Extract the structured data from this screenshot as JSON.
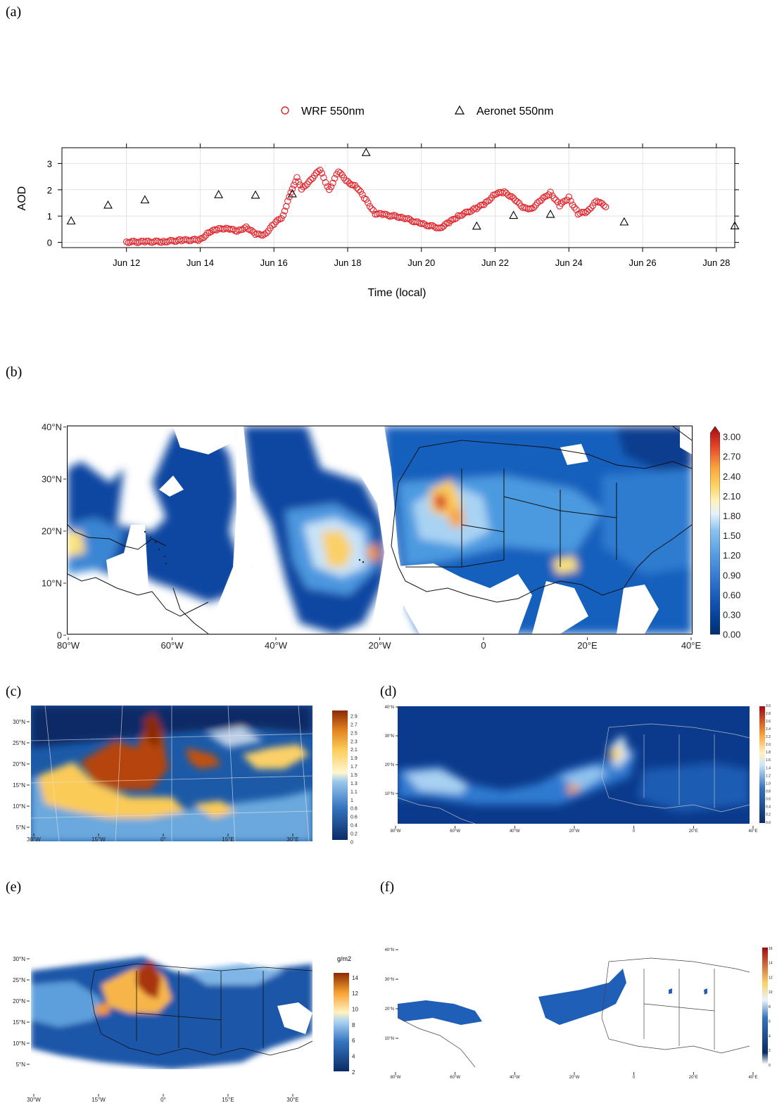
{
  "panels": {
    "a": "(a)",
    "b": "(b)",
    "c": "(c)",
    "d": "(d)",
    "e": "(e)",
    "f": "(f)"
  },
  "chart_data": [
    {
      "panel": "a",
      "type": "scatter",
      "title": "",
      "xlabel": "Time (local)",
      "ylabel": "AOD",
      "xlim": [
        "2015-06-10T06:00",
        "2015-06-28T12:00"
      ],
      "ylim": [
        -0.2,
        3.6
      ],
      "x_ticks": [
        "Jun 12",
        "Jun 14",
        "Jun 16",
        "Jun 18",
        "Jun 20",
        "Jun 22",
        "Jun 24",
        "Jun 26",
        "Jun 28"
      ],
      "x_tick_dates": [
        "2015-06-12",
        "2015-06-14",
        "2015-06-16",
        "2015-06-18",
        "2015-06-20",
        "2015-06-22",
        "2015-06-24",
        "2015-06-26",
        "2015-06-28"
      ],
      "y_ticks": [
        "0",
        "1",
        "2",
        "3"
      ],
      "grid": true,
      "legend": "top-center",
      "series": [
        {
          "name": "WRF 550nm",
          "marker": "circle",
          "color": "#e3242b",
          "points": [
            [
              "2015-06-12T00:00",
              0.02
            ],
            [
              "2015-06-12T12:00",
              0.02
            ],
            [
              "2015-06-13T00:00",
              0.03
            ],
            [
              "2015-06-13T12:00",
              0.08
            ],
            [
              "2015-06-14T00:00",
              0.1
            ],
            [
              "2015-06-14T06:00",
              0.4
            ],
            [
              "2015-06-14T12:00",
              0.5
            ],
            [
              "2015-06-14T18:00",
              0.55
            ],
            [
              "2015-06-15T00:00",
              0.4
            ],
            [
              "2015-06-15T06:00",
              0.6
            ],
            [
              "2015-06-15T12:00",
              0.3
            ],
            [
              "2015-06-15T18:00",
              0.3
            ],
            [
              "2015-06-16T00:00",
              0.7
            ],
            [
              "2015-06-16T06:00",
              1.0
            ],
            [
              "2015-06-16T09:00",
              1.6
            ],
            [
              "2015-06-16T12:00",
              2.0
            ],
            [
              "2015-06-16T15:00",
              2.5
            ],
            [
              "2015-06-16T18:00",
              2.0
            ],
            [
              "2015-06-17T00:00",
              2.4
            ],
            [
              "2015-06-17T06:00",
              2.75
            ],
            [
              "2015-06-17T12:00",
              2.0
            ],
            [
              "2015-06-17T18:00",
              2.7
            ],
            [
              "2015-06-18T00:00",
              2.3
            ],
            [
              "2015-06-18T06:00",
              2.1
            ],
            [
              "2015-06-18T12:00",
              1.6
            ],
            [
              "2015-06-18T18:00",
              1.1
            ],
            [
              "2015-06-19T00:00",
              1.05
            ],
            [
              "2015-06-19T12:00",
              0.95
            ],
            [
              "2015-06-20T00:00",
              0.7
            ],
            [
              "2015-06-20T12:00",
              0.55
            ],
            [
              "2015-06-20T18:00",
              0.75
            ],
            [
              "2015-06-21T00:00",
              1.0
            ],
            [
              "2015-06-21T12:00",
              1.3
            ],
            [
              "2015-06-21T18:00",
              1.5
            ],
            [
              "2015-06-22T00:00",
              1.85
            ],
            [
              "2015-06-22T06:00",
              1.9
            ],
            [
              "2015-06-22T12:00",
              1.7
            ],
            [
              "2015-06-22T18:00",
              1.3
            ],
            [
              "2015-06-23T00:00",
              1.3
            ],
            [
              "2015-06-23T06:00",
              1.6
            ],
            [
              "2015-06-23T12:00",
              1.9
            ],
            [
              "2015-06-23T18:00",
              1.4
            ],
            [
              "2015-06-24T00:00",
              1.7
            ],
            [
              "2015-06-24T06:00",
              1.1
            ],
            [
              "2015-06-24T12:00",
              1.15
            ],
            [
              "2015-06-24T18:00",
              1.6
            ],
            [
              "2015-06-25T00:00",
              1.35
            ]
          ]
        },
        {
          "name": "Aeronet 550nm",
          "marker": "triangle",
          "color": "#000000",
          "points": [
            [
              "2015-06-10T12:00",
              0.82
            ],
            [
              "2015-06-11T12:00",
              1.42
            ],
            [
              "2015-06-12T12:00",
              1.62
            ],
            [
              "2015-06-14T12:00",
              1.82
            ],
            [
              "2015-06-15T12:00",
              1.8
            ],
            [
              "2015-06-16T12:00",
              1.85
            ],
            [
              "2015-06-18T12:00",
              3.42
            ],
            [
              "2015-06-21T12:00",
              0.62
            ],
            [
              "2015-06-22T12:00",
              1.03
            ],
            [
              "2015-06-23T12:00",
              1.07
            ],
            [
              "2015-06-25T12:00",
              0.78
            ],
            [
              "2015-06-28T12:00",
              0.63
            ]
          ]
        }
      ]
    },
    {
      "panel": "b",
      "type": "heatmap",
      "title": "",
      "lat_ticks": [
        "40°N",
        "30°N",
        "20°N",
        "10°N",
        "0"
      ],
      "lon_ticks": [
        "80°W",
        "60°W",
        "40°W",
        "20°W",
        "0",
        "20°E",
        "40°E"
      ],
      "colorbar_ticks": [
        "3.00",
        "2.70",
        "2.40",
        "2.10",
        "1.80",
        "1.50",
        "1.20",
        "0.90",
        "0.60",
        "0.30",
        "0.00"
      ],
      "colormap": [
        "#002f70",
        "#0845a0",
        "#1e62c0",
        "#3b82d6",
        "#5ca2e4",
        "#8cc2ef",
        "#c7e3f7",
        "#fff2c0",
        "#fdd060",
        "#f9a53c",
        "#ef6a2a",
        "#d62d20",
        "#a30a10"
      ]
    },
    {
      "panel": "c",
      "type": "heatmap",
      "title": "",
      "lat_ticks": [
        "30°N",
        "25°N",
        "20°N",
        "15°N",
        "10°N",
        "5°N"
      ],
      "lon_ticks": [
        "30°W",
        "15°W",
        "0°",
        "15°E",
        "30°E"
      ],
      "colorbar_ticks": [
        "2.9",
        "2.7",
        "2.5",
        "2.3",
        "2.1",
        "1.9",
        "1.7",
        "1.5",
        "1.3",
        "1.1",
        "1",
        "0.8",
        "0.6",
        "0.4",
        "0.2",
        "0"
      ]
    },
    {
      "panel": "d",
      "type": "heatmap",
      "title": "",
      "lat_ticks": [
        "40°N",
        "30°N",
        "20°N",
        "10°N"
      ],
      "lon_ticks": [
        "80°W",
        "60°W",
        "40°W",
        "20°W",
        "0",
        "20°E",
        "40°E"
      ],
      "colorbar_ticks": [
        "3.0",
        "2.8",
        "2.6",
        "2.4",
        "2.2",
        "2.0",
        "1.8",
        "1.6",
        "1.4",
        "1.2",
        "1.0",
        "0.8",
        "0.6",
        "0.4",
        "0.2",
        "0.0"
      ]
    },
    {
      "panel": "e",
      "type": "heatmap",
      "title": "",
      "colorbar_unit": "g/m2",
      "lat_ticks": [
        "30°N",
        "25°N",
        "20°N",
        "15°N",
        "10°N",
        "5°N"
      ],
      "lon_ticks": [
        "30°W",
        "15°W",
        "0°",
        "15°E",
        "30°E"
      ],
      "colorbar_ticks": [
        "14",
        "12",
        "10",
        "8",
        "6",
        "4",
        "2"
      ]
    },
    {
      "panel": "f",
      "type": "heatmap",
      "title": "",
      "lat_ticks": [
        "40°N",
        "30°N",
        "20°N",
        "10°N"
      ],
      "lon_ticks": [
        "80°W",
        "60°W",
        "40°W",
        "20°W",
        "0",
        "20°E",
        "40°E"
      ],
      "colorbar_ticks": [
        "16",
        "14",
        "12",
        "10",
        "8",
        "6",
        "4",
        "2",
        "0"
      ]
    }
  ]
}
